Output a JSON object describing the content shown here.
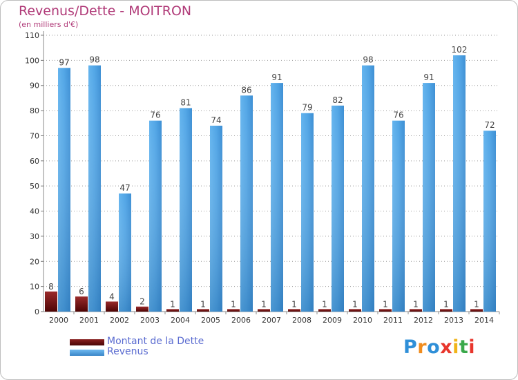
{
  "header": {
    "title": "Revenus/Dette - MOITRON",
    "subtitle": "(en milliers d'€)"
  },
  "chart_data": {
    "type": "bar",
    "title": "Revenus/Dette - MOITRON",
    "ylabel": "(en milliers d'€)",
    "xlabel": "",
    "categories": [
      "2000",
      "2001",
      "2002",
      "2003",
      "2004",
      "2005",
      "2006",
      "2007",
      "2008",
      "2009",
      "2010",
      "2011",
      "2012",
      "2013",
      "2014"
    ],
    "series": [
      {
        "name": "Montant de la Dette",
        "color": "#6b0d0d",
        "values": [
          8,
          6,
          4,
          2,
          1,
          1,
          1,
          1,
          1,
          1,
          1,
          1,
          1,
          1,
          1
        ]
      },
      {
        "name": "Revenus",
        "color": "#4a9fe0",
        "values": [
          97,
          98,
          47,
          76,
          81,
          74,
          86,
          91,
          79,
          82,
          98,
          76,
          91,
          102,
          72
        ]
      }
    ],
    "ylim": [
      0,
      110
    ],
    "yticks": [
      0,
      10,
      20,
      30,
      40,
      50,
      60,
      70,
      80,
      90,
      100,
      110
    ],
    "grid": true,
    "legend_position": "bottom-left"
  },
  "legend": [
    {
      "label": "Montant de la Dette",
      "color": "#6b0d0d"
    },
    {
      "label": "Revenus",
      "color": "#4a9fe0"
    }
  ],
  "logo": {
    "text": "Proxiti",
    "letters": [
      {
        "char": "P",
        "color": "#2f8fd8"
      },
      {
        "char": "r",
        "color": "#f08c1e"
      },
      {
        "char": "o",
        "color": "#2f8fd8"
      },
      {
        "char": "x",
        "color": "#e8362c"
      },
      {
        "char": "i",
        "color": "#f0b419"
      },
      {
        "char": "t",
        "color": "#3aa84a"
      },
      {
        "char": "i",
        "color": "#e8362c"
      }
    ]
  }
}
